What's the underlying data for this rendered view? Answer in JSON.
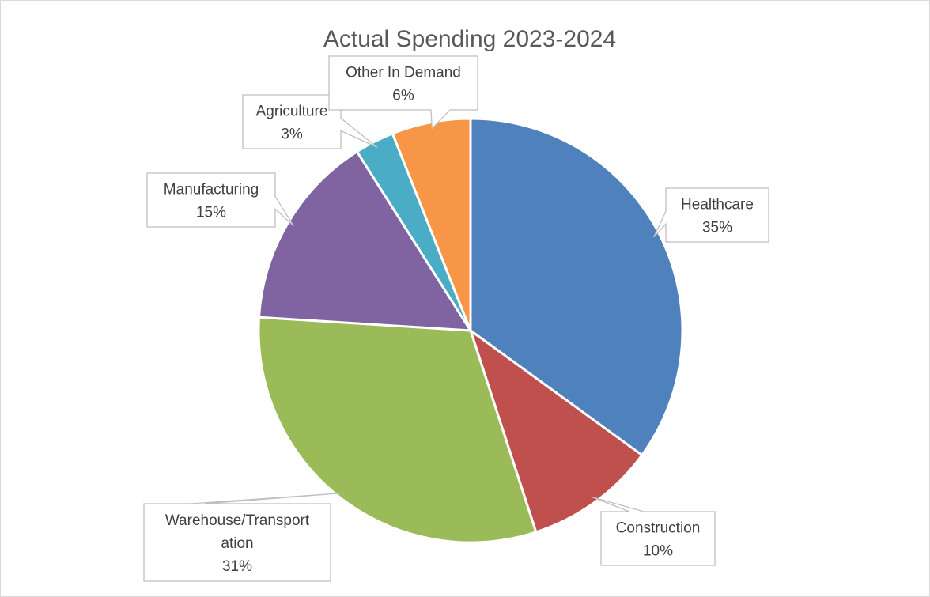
{
  "chart_data": {
    "type": "pie",
    "title": "Actual Spending 2023-2024",
    "slices": [
      {
        "label_lines": [
          "Healthcare"
        ],
        "value": 35,
        "value_label": "35%",
        "color": "#4F81BD"
      },
      {
        "label_lines": [
          "Construction"
        ],
        "value": 10,
        "value_label": "10%",
        "color": "#C0504D"
      },
      {
        "label_lines": [
          "Warehouse/Transport",
          "ation"
        ],
        "value": 31,
        "value_label": "31%",
        "color": "#9BBB59"
      },
      {
        "label_lines": [
          "Manufacturing"
        ],
        "value": 15,
        "value_label": "15%",
        "color": "#8064A2"
      },
      {
        "label_lines": [
          "Agriculture"
        ],
        "value": 3,
        "value_label": "3%",
        "color": "#4BACC6"
      },
      {
        "label_lines": [
          "Other In Demand"
        ],
        "value": 6,
        "value_label": "6%",
        "color": "#F79646"
      }
    ],
    "start_angle_deg": 0,
    "direction": "clockwise",
    "data_labels": "callouts",
    "legend": "none"
  }
}
